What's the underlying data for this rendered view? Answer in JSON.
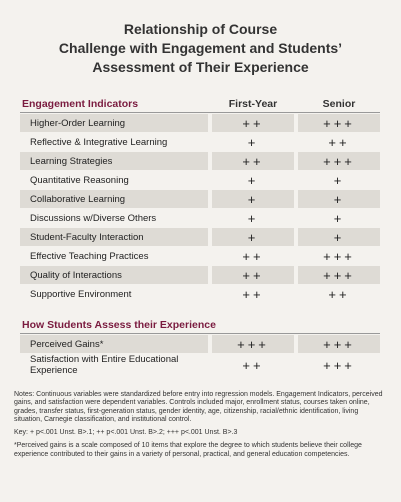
{
  "title": [
    "Relationship of Course",
    "Challenge with Engagement and Students’",
    "Assessment of Their Experience"
  ],
  "table": {
    "columns": [
      "First-Year",
      "Senior"
    ],
    "sections": [
      {
        "title": "Engagement Indicators",
        "rows": [
          [
            "Higher-Order Learning",
            "++",
            "+++"
          ],
          [
            "Reflective & Integrative Learning",
            "+",
            "++"
          ],
          [
            "Learning Strategies",
            "++",
            "+++"
          ],
          [
            "Quantitative Reasoning",
            "+",
            "+"
          ],
          [
            "Collaborative Learning",
            "+",
            "+"
          ],
          [
            "Discussions w/Diverse Others",
            "+",
            "+"
          ],
          [
            "Student-Faculty Interaction",
            "+",
            "+"
          ],
          [
            "Effective Teaching Practices",
            "++",
            "+++"
          ],
          [
            "Quality of Interactions",
            "++",
            "+++"
          ],
          [
            "Supportive Environment",
            "++",
            "++"
          ]
        ]
      },
      {
        "title": "How Students Assess their Experience",
        "rows": [
          [
            "Perceived Gains*",
            "+++",
            "+++"
          ],
          [
            "Satisfaction with Entire Educational Experience",
            "++",
            "+++"
          ]
        ]
      }
    ]
  },
  "notes": "Notes: Continuous variables were standardized before entry into regression models. Engagement Indicators, perceived gains, and satisfaction were dependent variables. Controls included major, enrollment status, courses taken online, grades, transfer status, first-generation status, gender identity, age, citizenship, racial/ethnic identification, living situation, Carnegie classification, and institutional control.",
  "key": "Key: + p<.001 Unst. B>.1; ++ p<.001 Unst. B>.2; +++ p<.001 Unst. B>.3",
  "footnote": "*Perceived gains is a scale composed of 10 items that explore the degree to which students believe their college experience contributed to their gains in a variety of personal, practical, and general education competencies."
}
